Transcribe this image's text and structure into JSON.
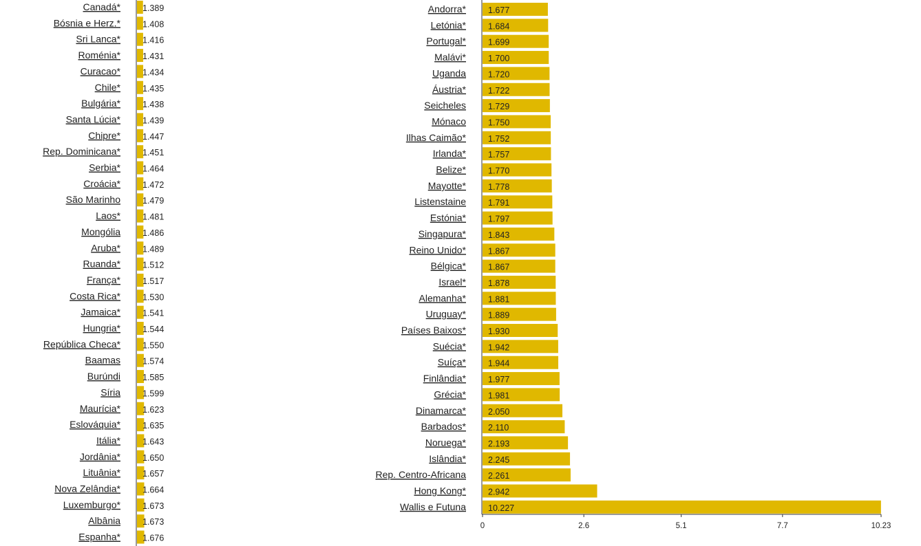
{
  "chart_data": [
    {
      "type": "bar",
      "orientation": "horizontal",
      "categories": [
        "Canadá*",
        "Bósnia e Herz.*",
        "Sri Lanca*",
        "Roménia*",
        "Curacao*",
        "Chile*",
        "Bulgária*",
        "Santa Lúcia*",
        "Chipre*",
        "Rep. Dominicana*",
        "Serbia*",
        "Croácia*",
        "São Marinho",
        "Laos*",
        "Mongólia",
        "Aruba*",
        "Ruanda*",
        "França*",
        "Costa Rica*",
        "Jamaica*",
        "Hungria*",
        "República Checa*",
        "Baamas",
        "Burúndi",
        "Síria",
        "Maurícia*",
        "Eslováquia*",
        "Itália*",
        "Jordânia*",
        "Lituânia*",
        "Nova Zelândia*",
        "Luxemburgo*",
        "Albânia",
        "Espanha*"
      ],
      "values": [
        1.389,
        1.408,
        1.416,
        1.431,
        1.434,
        1.435,
        1.438,
        1.439,
        1.447,
        1.451,
        1.464,
        1.472,
        1.479,
        1.481,
        1.486,
        1.489,
        1.512,
        1.517,
        1.53,
        1.541,
        1.544,
        1.55,
        1.574,
        1.585,
        1.599,
        1.623,
        1.635,
        1.643,
        1.65,
        1.657,
        1.664,
        1.673,
        1.673,
        1.676
      ],
      "value_labels": [
        "1.389",
        "1.408",
        "1.416",
        "1.431",
        "1.434",
        "1.435",
        "1.438",
        "1.439",
        "1.447",
        "1.451",
        "1.464",
        "1.472",
        "1.479",
        "1.481",
        "1.486",
        "1.489",
        "1.512",
        "1.517",
        "1.530",
        "1.541",
        "1.544",
        "1.550",
        "1.574",
        "1.585",
        "1.599",
        "1.623",
        "1.635",
        "1.643",
        "1.650",
        "1.657",
        "1.664",
        "1.673",
        "1.673",
        "1.676"
      ],
      "xlim": [
        0,
        10.23
      ],
      "bar_color": "#e0b800"
    },
    {
      "type": "bar",
      "orientation": "horizontal",
      "categories": [
        "Andorra*",
        "Letónia*",
        "Portugal*",
        "Malávi*",
        "Uganda",
        "Áustria*",
        "Seicheles",
        "Mónaco",
        "Ilhas Caimão*",
        "Irlanda*",
        "Belize*",
        "Mayotte*",
        "Listenstaine",
        "Estónia*",
        "Singapura*",
        "Reino Unido*",
        "Bélgica*",
        "Israel*",
        "Alemanha*",
        "Uruguay*",
        "Países Baixos*",
        "Suécia*",
        "Suíça*",
        "Finlândia*",
        "Grécia*",
        "Dinamarca*",
        "Barbados*",
        "Noruega*",
        "Islândia*",
        "Rep. Centro-Africana",
        "Hong Kong*",
        "Wallis e Futuna"
      ],
      "values": [
        1.677,
        1.684,
        1.699,
        1.7,
        1.72,
        1.722,
        1.729,
        1.75,
        1.752,
        1.757,
        1.77,
        1.778,
        1.791,
        1.797,
        1.843,
        1.867,
        1.867,
        1.878,
        1.881,
        1.889,
        1.93,
        1.942,
        1.944,
        1.977,
        1.981,
        2.05,
        2.11,
        2.193,
        2.245,
        2.261,
        2.942,
        10.227
      ],
      "value_labels": [
        "1.677",
        "1.684",
        "1.699",
        "1.700",
        "1.720",
        "1.722",
        "1.729",
        "1.750",
        "1.752",
        "1.757",
        "1.770",
        "1.778",
        "1.791",
        "1.797",
        "1.843",
        "1.867",
        "1.867",
        "1.878",
        "1.881",
        "1.889",
        "1.930",
        "1.942",
        "1.944",
        "1.977",
        "1.981",
        "2.050",
        "2.110",
        "2.193",
        "2.245",
        "2.261",
        "2.942",
        "10.227"
      ],
      "xlim": [
        0,
        10.23
      ],
      "xticks": [
        0,
        2.6,
        5.1,
        7.7,
        10.23
      ],
      "xtick_labels": [
        "0",
        "2.6",
        "5.1",
        "7.7",
        "10.23"
      ],
      "bar_color": "#e0b800"
    }
  ]
}
